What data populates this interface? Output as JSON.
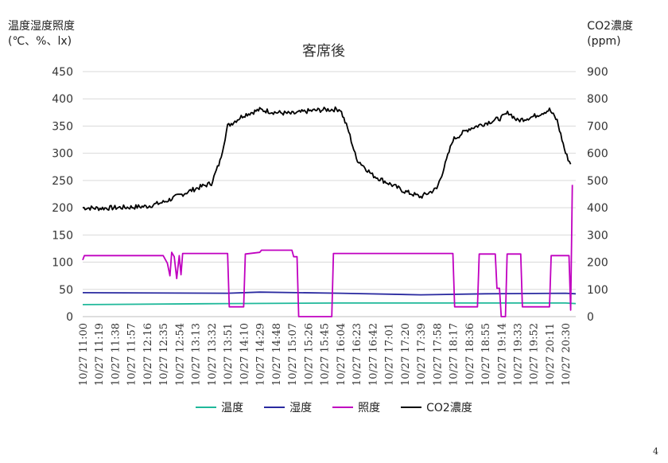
{
  "page_number": "4",
  "chart_data": {
    "type": "line",
    "title": "客席後",
    "ylabel_left": [
      "温度湿度照度",
      "(℃、%、lx)"
    ],
    "ylabel_right": [
      "CO2濃度",
      "(ppm)"
    ],
    "ylim_left": [
      0,
      450
    ],
    "yticks_left": [
      0,
      50,
      100,
      150,
      200,
      250,
      300,
      350,
      400,
      450
    ],
    "ylim_right": [
      0,
      900
    ],
    "yticks_right": [
      0,
      100,
      200,
      300,
      400,
      500,
      600,
      700,
      800,
      900
    ],
    "x_tick_labels": [
      "10/27 11:00",
      "10/27 11:19",
      "10/27 11:38",
      "10/27 11:57",
      "10/27 12:16",
      "10/27 12:35",
      "10/27 12:54",
      "10/27 13:13",
      "10/27 13:32",
      "10/27 13:51",
      "10/27 14:10",
      "10/27 14:29",
      "10/27 14:48",
      "10/27 15:07",
      "10/27 15:26",
      "10/27 15:45",
      "10/27 16:04",
      "10/27 16:23",
      "10/27 16:42",
      "10/27 17:01",
      "10/27 17:20",
      "10/27 17:39",
      "10/27 17:58",
      "10/27 18:17",
      "10/27 18:36",
      "10/27 18:55",
      "10/27 19:14",
      "10/27 19:33",
      "10/27 19:52",
      "10/27 20:11",
      "10/27 20:30"
    ],
    "grid": "horizontal",
    "legend_position": "bottom",
    "series": [
      {
        "name": "温度",
        "axis": "left",
        "color": "#1fb89a",
        "points": [
          [
            "10/27 11:00",
            22
          ],
          [
            "10/27 13:51",
            24
          ],
          [
            "10/27 16:04",
            25
          ],
          [
            "10/27 18:17",
            25
          ],
          [
            "10/27 20:30",
            25
          ],
          [
            "10/27 20:42",
            24
          ]
        ]
      },
      {
        "name": "湿度",
        "axis": "left",
        "color": "#2a2aa0",
        "points": [
          [
            "10/27 11:00",
            44
          ],
          [
            "10/27 13:51",
            43
          ],
          [
            "10/27 14:29",
            45
          ],
          [
            "10/27 16:04",
            43
          ],
          [
            "10/27 17:39",
            40
          ],
          [
            "10/27 18:55",
            42
          ],
          [
            "10/27 20:30",
            43
          ],
          [
            "10/27 20:42",
            42
          ]
        ]
      },
      {
        "name": "照度",
        "axis": "left",
        "color": "#c000c0",
        "points": [
          [
            "10/27 11:00",
            104
          ],
          [
            "10/27 11:02",
            112
          ],
          [
            "10/27 12:35",
            112
          ],
          [
            "10/27 12:40",
            98
          ],
          [
            "10/27 12:43",
            75
          ],
          [
            "10/27 12:45",
            118
          ],
          [
            "10/27 12:48",
            110
          ],
          [
            "10/27 12:51",
            70
          ],
          [
            "10/27 12:54",
            112
          ],
          [
            "10/27 12:56",
            77
          ],
          [
            "10/27 12:58",
            116
          ],
          [
            "10/27 13:51",
            116
          ],
          [
            "10/27 13:53",
            18
          ],
          [
            "10/27 14:10",
            18
          ],
          [
            "10/27 14:12",
            115
          ],
          [
            "10/27 14:29",
            118
          ],
          [
            "10/27 14:31",
            122
          ],
          [
            "10/27 15:07",
            122
          ],
          [
            "10/27 15:09",
            110
          ],
          [
            "10/27 15:13",
            110
          ],
          [
            "10/27 15:15",
            0
          ],
          [
            "10/27 15:54",
            0
          ],
          [
            "10/27 15:56",
            116
          ],
          [
            "10/27 18:17",
            116
          ],
          [
            "10/27 18:19",
            18
          ],
          [
            "10/27 18:46",
            18
          ],
          [
            "10/27 18:48",
            115
          ],
          [
            "10/27 19:07",
            115
          ],
          [
            "10/27 19:09",
            52
          ],
          [
            "10/27 19:12",
            52
          ],
          [
            "10/27 19:14",
            0
          ],
          [
            "10/27 19:19",
            0
          ],
          [
            "10/27 19:21",
            115
          ],
          [
            "10/27 19:37",
            115
          ],
          [
            "10/27 19:39",
            18
          ],
          [
            "10/27 20:11",
            18
          ],
          [
            "10/27 20:13",
            112
          ],
          [
            "10/27 20:34",
            112
          ],
          [
            "10/27 20:36",
            12
          ],
          [
            "10/27 20:38",
            242
          ]
        ]
      },
      {
        "name": "CO2濃度",
        "axis": "right",
        "color": "#000000",
        "points": [
          [
            "10/27 11:00",
            400
          ],
          [
            "10/27 11:19",
            398
          ],
          [
            "10/27 11:38",
            400
          ],
          [
            "10/27 11:57",
            402
          ],
          [
            "10/27 12:16",
            405
          ],
          [
            "10/27 12:35",
            420
          ],
          [
            "10/27 12:54",
            445
          ],
          [
            "10/27 13:13",
            470
          ],
          [
            "10/27 13:32",
            490
          ],
          [
            "10/27 13:42",
            570
          ],
          [
            "10/27 13:51",
            700
          ],
          [
            "10/27 14:10",
            740
          ],
          [
            "10/27 14:29",
            760
          ],
          [
            "10/27 14:48",
            750
          ],
          [
            "10/27 15:07",
            745
          ],
          [
            "10/27 15:26",
            755
          ],
          [
            "10/27 15:45",
            760
          ],
          [
            "10/27 16:04",
            762
          ],
          [
            "10/27 16:14",
            680
          ],
          [
            "10/27 16:23",
            580
          ],
          [
            "10/27 16:42",
            520
          ],
          [
            "10/27 17:01",
            490
          ],
          [
            "10/27 17:20",
            460
          ],
          [
            "10/27 17:39",
            440
          ],
          [
            "10/27 17:58",
            470
          ],
          [
            "10/27 18:08",
            560
          ],
          [
            "10/27 18:17",
            650
          ],
          [
            "10/27 18:36",
            690
          ],
          [
            "10/27 18:55",
            710
          ],
          [
            "10/27 19:14",
            730
          ],
          [
            "10/27 19:23",
            750
          ],
          [
            "10/27 19:33",
            720
          ],
          [
            "10/27 19:52",
            735
          ],
          [
            "10/27 20:11",
            760
          ],
          [
            "10/27 20:20",
            720
          ],
          [
            "10/27 20:30",
            600
          ],
          [
            "10/27 20:36",
            560
          ]
        ]
      }
    ]
  }
}
